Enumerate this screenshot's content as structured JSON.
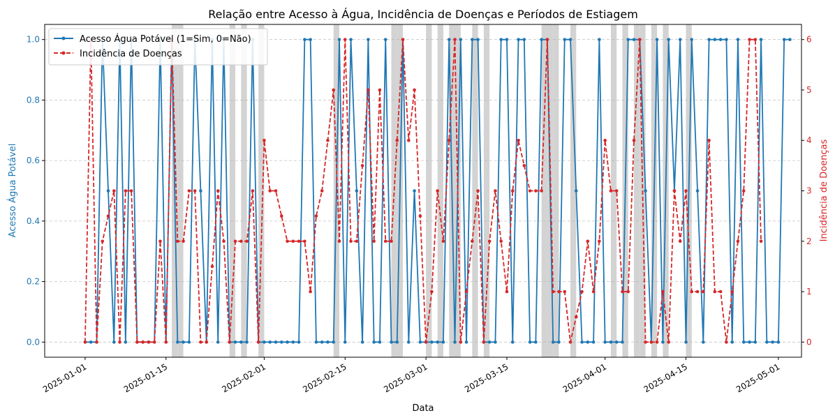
{
  "chart_data": {
    "type": "line",
    "title": "Relação entre Acesso à Água, Incidência de Doenças e Períodos de Estiagem",
    "xlabel": "Data",
    "ylabel_left": "Acesso Água Potável",
    "ylabel_right": "Incidência de Doenças",
    "x_start": "2025-01-01",
    "x_range": [
      "2024-12-25",
      "2025-05-05"
    ],
    "ylim_left": [
      -0.05,
      1.05
    ],
    "ylim_right": [
      -0.3,
      6.3
    ],
    "yticks_left": [
      "0.0",
      "0.2",
      "0.4",
      "0.6",
      "0.8",
      "1.0"
    ],
    "yticks_right": [
      "0",
      "1",
      "2",
      "3",
      "4",
      "5",
      "6"
    ],
    "xticks": [
      {
        "date": "2025-01-01",
        "label": "2025-01-01"
      },
      {
        "date": "2025-01-15",
        "label": "2025-01-15"
      },
      {
        "date": "2025-02-01",
        "label": "2025-02-01"
      },
      {
        "date": "2025-02-15",
        "label": "2025-02-15"
      },
      {
        "date": "2025-03-01",
        "label": "2025-03-01"
      },
      {
        "date": "2025-03-15",
        "label": "2025-03-15"
      },
      {
        "date": "2025-04-01",
        "label": "2025-04-01"
      },
      {
        "date": "2025-04-15",
        "label": "2025-04-15"
      },
      {
        "date": "2025-05-01",
        "label": "2025-05-01"
      }
    ],
    "grid": "horizontal dashed",
    "legend_position": "top-left",
    "series": [
      {
        "name": "Acesso Água Potável (1=Sim, 0=Não)",
        "axis": "left",
        "color": "#1f77b4",
        "style": "solid",
        "values": [
          0,
          0,
          0,
          1,
          0.5,
          0,
          1,
          0,
          1,
          0,
          0,
          0,
          0,
          1,
          0,
          1,
          0,
          0,
          0,
          1,
          0.5,
          0,
          1,
          0,
          1,
          0,
          0,
          0,
          0,
          1,
          0,
          0,
          0,
          0,
          0,
          0,
          0,
          0,
          1,
          1,
          0,
          0,
          0,
          0,
          1,
          0,
          1,
          0.5,
          0,
          1,
          0,
          0,
          1,
          0,
          0,
          1,
          0,
          0.5,
          0,
          0,
          0,
          0,
          0,
          1,
          0,
          1,
          0,
          1,
          1,
          0,
          0,
          0,
          1,
          1,
          0,
          1,
          1,
          0,
          0,
          1,
          1,
          0,
          0,
          1,
          1,
          0.5,
          0,
          0,
          0,
          1,
          0,
          0,
          0,
          0,
          1,
          1,
          1,
          0.5,
          0,
          1,
          0,
          1,
          0.5,
          1,
          0,
          1,
          0.5,
          0,
          1,
          1,
          1,
          1,
          0,
          1,
          0,
          0,
          0,
          1,
          0,
          0,
          0,
          1,
          1
        ]
      },
      {
        "name": "Incidência de Doenças",
        "axis": "right",
        "color": "#d62728",
        "style": "dashed",
        "values": [
          0,
          6,
          0,
          2,
          2.5,
          3,
          0,
          3,
          3,
          0,
          0,
          0,
          0,
          2,
          0,
          6,
          2,
          2,
          3,
          3,
          0,
          0,
          1.5,
          3,
          2,
          0,
          2,
          2,
          2,
          3,
          0,
          4,
          3,
          3,
          2.5,
          2,
          2,
          2,
          2,
          1,
          2.5,
          3,
          4,
          5,
          2,
          6,
          2,
          2,
          3.5,
          5,
          2,
          5,
          2,
          2,
          4,
          6,
          4,
          5,
          2.5,
          0,
          1,
          3,
          2,
          4,
          6,
          0,
          1,
          2,
          3,
          0,
          2,
          3,
          2,
          1,
          3,
          4,
          3.5,
          3,
          3,
          3,
          6,
          1,
          1,
          1,
          0,
          0.5,
          1,
          2,
          1,
          2,
          4,
          3,
          3,
          1,
          1,
          4,
          6,
          0,
          0,
          0,
          1,
          0,
          3,
          2,
          3,
          1,
          1,
          1,
          4,
          1,
          1,
          0,
          1,
          2,
          3,
          6,
          6,
          2
        ]
      },
      {
        "name": "Períodos de Estiagem",
        "color": "#d3d3d3",
        "drought_days": [
          "2025-01-16",
          "2025-01-17",
          "2025-01-26",
          "2025-01-28",
          "2025-01-31",
          "2025-02-13",
          "2025-02-23",
          "2025-02-24",
          "2025-03-01",
          "2025-03-03",
          "2025-03-05",
          "2025-03-06",
          "2025-03-09",
          "2025-03-11",
          "2025-03-21",
          "2025-03-22",
          "2025-03-23",
          "2025-03-26",
          "2025-04-02",
          "2025-04-04",
          "2025-04-06",
          "2025-04-07",
          "2025-04-09",
          "2025-04-11",
          "2025-04-15"
        ]
      }
    ]
  }
}
